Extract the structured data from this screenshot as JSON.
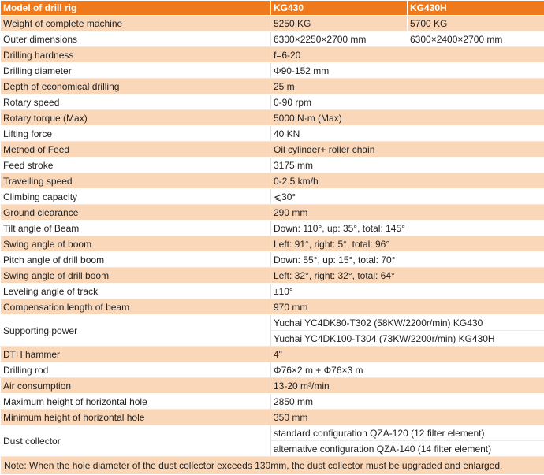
{
  "header": {
    "col1": "Model of drill rig",
    "col2": "KG430",
    "col3": "KG430H"
  },
  "rows": [
    {
      "label": "Weight of complete machine",
      "v1": "5250 KG",
      "v2": "5700 KG"
    },
    {
      "label": "Outer dimensions",
      "v1": "6300×2250×2700 mm",
      "v2": "6300×2400×2700 mm"
    },
    {
      "label": "Drilling hardness",
      "v": "f=6-20"
    },
    {
      "label": "Drilling diameter",
      "v": "Φ90-152 mm"
    },
    {
      "label": "Depth of economical drilling",
      "v": "25 m"
    },
    {
      "label": "Rotary speed",
      "v": "0-90 rpm"
    },
    {
      "label": "Rotary torque (Max)",
      "v": "5000 N·m (Max)"
    },
    {
      "label": "Lifting force",
      "v": "40 KN"
    },
    {
      "label": "Method of Feed",
      "v": "Oil cylinder+ roller chain"
    },
    {
      "label": "Feed stroke",
      "v": "3175 mm"
    },
    {
      "label": "Travelling speed",
      "v": "0-2.5 km/h"
    },
    {
      "label": "Climbing capacity",
      "v": "⩽30°"
    },
    {
      "label": "Ground clearance",
      "v": "290 mm"
    },
    {
      "label": "Tilt angle of Beam",
      "v": "Down: 110°, up: 35°, total: 145°"
    },
    {
      "label": "Swing angle of boom",
      "v": "Left: 91°, right: 5°, total: 96°"
    },
    {
      "label": "Pitch angle of drill boom",
      "v": "Down: 55°, up: 15°, total: 70°"
    },
    {
      "label": "Swing angle of drill boom",
      "v": "Left: 32°, right: 32°, total: 64°"
    },
    {
      "label": "Leveling angle of track",
      "v": "±10°"
    },
    {
      "label": "Compensation length of beam",
      "v": "970 mm"
    },
    {
      "label": "Supporting power",
      "lines": [
        "Yuchai YC4DK80-T302 (58KW/2200r/min) KG430",
        "Yuchai YC4DK100-T304 (73KW/2200r/min) KG430H"
      ]
    },
    {
      "label": "DTH hammer",
      "v": "4\""
    },
    {
      "label": "Drilling rod",
      "v": "Φ76×2 m + Φ76×3 m"
    },
    {
      "label": "Air consumption",
      "v": "13-20 m³/min"
    },
    {
      "label": "Maximum height of horizontal hole",
      "v": "2850 mm"
    },
    {
      "label": "Minimum height of horizontal hole",
      "v": "350 mm"
    },
    {
      "label": "Dust collector",
      "lines": [
        "standard configuration QZA-120 (12 filter element)",
        "alternative configuration QZA-140 (14 filter element)"
      ]
    }
  ],
  "note": "Note: When the hole diameter of the dust collector exceeds 130mm, the dust collector must be upgraded and enlarged."
}
